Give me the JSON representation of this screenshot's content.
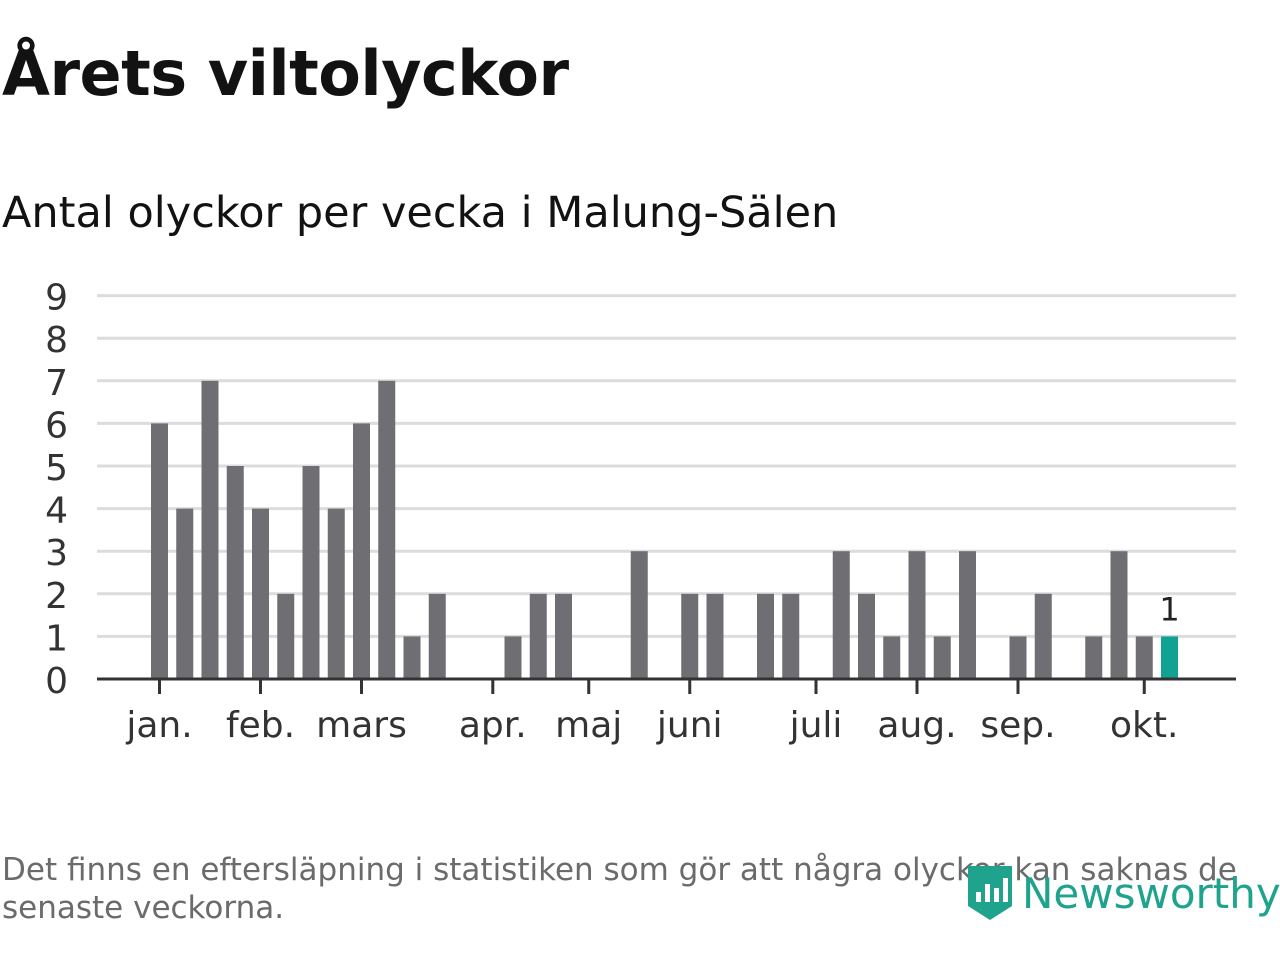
{
  "title": "Årets viltolyckor",
  "subtitle": "Antal olyckor per vecka i Malung-Sälen",
  "footnote": "Det finns en eftersläpning i statistiken som gör att några olyckor kan saknas de senaste veckorna.",
  "brand": {
    "name": "Newsworthy",
    "icon": "newsworthy-logo-icon",
    "color": "#1fa38d"
  },
  "chart_data": {
    "type": "bar",
    "title": "Årets viltolyckor",
    "subtitle": "Antal olyckor per vecka i Malung-Sälen",
    "xlabel": "",
    "ylabel": "",
    "ylim": [
      0,
      9
    ],
    "yticks": [
      "0",
      "1",
      "2",
      "3",
      "4",
      "5",
      "6",
      "7",
      "8",
      "9"
    ],
    "grid": true,
    "bar_color": "#6f6e73",
    "highlight_color": "#12a294",
    "highlight_index": 40,
    "highlight_label": "1",
    "weeks": [
      1,
      2,
      3,
      4,
      5,
      6,
      7,
      8,
      9,
      10,
      11,
      12,
      13,
      14,
      15,
      16,
      17,
      18,
      19,
      20,
      21,
      22,
      23,
      24,
      25,
      26,
      27,
      28,
      29,
      30,
      31,
      32,
      33,
      34,
      35,
      36,
      37,
      38,
      39,
      40,
      41
    ],
    "values": [
      6,
      4,
      7,
      5,
      4,
      2,
      5,
      4,
      6,
      7,
      1,
      2,
      0,
      0,
      1,
      2,
      2,
      0,
      0,
      3,
      0,
      2,
      2,
      0,
      2,
      2,
      0,
      3,
      2,
      1,
      3,
      1,
      3,
      0,
      1,
      2,
      0,
      1,
      3,
      1,
      1
    ],
    "month_labels": [
      "jan.",
      "feb.",
      "mars",
      "apr.",
      "maj",
      "juni",
      "juli",
      "aug.",
      "sep.",
      "okt."
    ],
    "month_ticks": [
      1.0,
      5.0,
      9.0,
      14.2,
      18.0,
      22.0,
      27.0,
      31.0,
      35.0,
      40.0
    ]
  }
}
